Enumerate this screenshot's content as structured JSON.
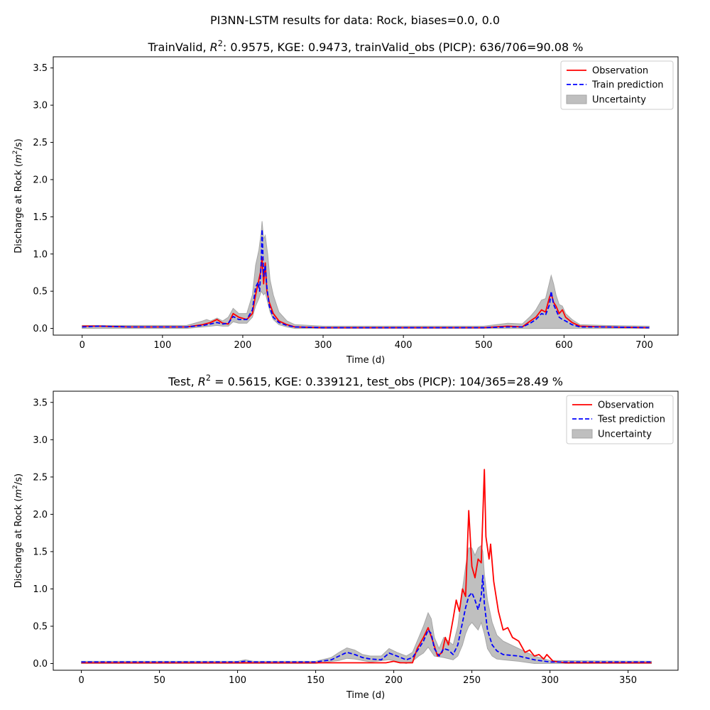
{
  "figure": {
    "suptitle": "PI3NN-LSTM results for data: Rock, biases=0.0, 0.0"
  },
  "colors": {
    "observation": "#ff0000",
    "prediction": "#0000ff",
    "uncertainty": "#bfbfbf",
    "uncertainty_edge": "#a6a6a6"
  },
  "chart_data": [
    {
      "type": "line",
      "title_parts": [
        "TrainValid, ",
        "R",
        "2",
        ": 0.9575,  KGE: 0.9473, trainValid_obs (PICP): 636/706=90.08 %"
      ],
      "xlabel": "Time (d)",
      "ylabel_parts": [
        "Discharge at Rock (",
        "m",
        "2",
        "/s)"
      ],
      "xlim": [
        -36,
        742
      ],
      "ylim": [
        -0.09,
        3.65
      ],
      "xticks": [
        0,
        100,
        200,
        300,
        400,
        500,
        600,
        700
      ],
      "yticks": [
        0.0,
        0.5,
        1.0,
        1.5,
        2.0,
        2.5,
        3.0,
        3.5
      ],
      "xtick_labels": [
        "0",
        "100",
        "200",
        "300",
        "400",
        "500",
        "600",
        "700"
      ],
      "ytick_labels": [
        "0.0",
        "0.5",
        "1.0",
        "1.5",
        "2.0",
        "2.5",
        "3.0",
        "3.5"
      ],
      "legend": {
        "loc": "upper right",
        "entries": [
          "Observation",
          "Train prediction",
          "Uncertainty"
        ]
      },
      "grid": false,
      "observation": [
        [
          0,
          0.03
        ],
        [
          20,
          0.03
        ],
        [
          60,
          0.02
        ],
        [
          100,
          0.02
        ],
        [
          130,
          0.02
        ],
        [
          150,
          0.05
        ],
        [
          160,
          0.08
        ],
        [
          168,
          0.12
        ],
        [
          175,
          0.07
        ],
        [
          182,
          0.06
        ],
        [
          188,
          0.2
        ],
        [
          195,
          0.15
        ],
        [
          205,
          0.12
        ],
        [
          212,
          0.2
        ],
        [
          216,
          0.45
        ],
        [
          219,
          0.6
        ],
        [
          222,
          0.75
        ],
        [
          224,
          0.95
        ],
        [
          226,
          0.6
        ],
        [
          228,
          0.88
        ],
        [
          230,
          0.5
        ],
        [
          233,
          0.35
        ],
        [
          238,
          0.2
        ],
        [
          245,
          0.1
        ],
        [
          255,
          0.05
        ],
        [
          265,
          0.02
        ],
        [
          300,
          0.01
        ],
        [
          400,
          0.01
        ],
        [
          500,
          0.01
        ],
        [
          530,
          0.03
        ],
        [
          548,
          0.02
        ],
        [
          558,
          0.1
        ],
        [
          565,
          0.15
        ],
        [
          572,
          0.25
        ],
        [
          577,
          0.22
        ],
        [
          582,
          0.42
        ],
        [
          584,
          0.47
        ],
        [
          587,
          0.35
        ],
        [
          590,
          0.3
        ],
        [
          594,
          0.2
        ],
        [
          598,
          0.25
        ],
        [
          602,
          0.15
        ],
        [
          610,
          0.08
        ],
        [
          620,
          0.03
        ],
        [
          650,
          0.02
        ],
        [
          706,
          0.01
        ]
      ],
      "prediction": [
        [
          0,
          0.02
        ],
        [
          20,
          0.03
        ],
        [
          60,
          0.02
        ],
        [
          100,
          0.02
        ],
        [
          130,
          0.02
        ],
        [
          150,
          0.04
        ],
        [
          160,
          0.06
        ],
        [
          168,
          0.08
        ],
        [
          175,
          0.06
        ],
        [
          182,
          0.07
        ],
        [
          188,
          0.16
        ],
        [
          195,
          0.12
        ],
        [
          205,
          0.12
        ],
        [
          212,
          0.25
        ],
        [
          216,
          0.55
        ],
        [
          219,
          0.62
        ],
        [
          221,
          0.5
        ],
        [
          223,
          0.9
        ],
        [
          224,
          1.33
        ],
        [
          226,
          0.7
        ],
        [
          228,
          0.85
        ],
        [
          230,
          0.55
        ],
        [
          233,
          0.3
        ],
        [
          238,
          0.15
        ],
        [
          245,
          0.08
        ],
        [
          255,
          0.04
        ],
        [
          265,
          0.02
        ],
        [
          300,
          0.01
        ],
        [
          400,
          0.01
        ],
        [
          500,
          0.01
        ],
        [
          530,
          0.02
        ],
        [
          548,
          0.02
        ],
        [
          558,
          0.07
        ],
        [
          565,
          0.12
        ],
        [
          572,
          0.2
        ],
        [
          577,
          0.18
        ],
        [
          582,
          0.32
        ],
        [
          584,
          0.5
        ],
        [
          587,
          0.32
        ],
        [
          590,
          0.25
        ],
        [
          594,
          0.15
        ],
        [
          598,
          0.12
        ],
        [
          602,
          0.1
        ],
        [
          610,
          0.05
        ],
        [
          620,
          0.02
        ],
        [
          650,
          0.02
        ],
        [
          706,
          0.01
        ]
      ],
      "upper": [
        [
          0,
          0.04
        ],
        [
          60,
          0.04
        ],
        [
          130,
          0.04
        ],
        [
          150,
          0.1
        ],
        [
          155,
          0.12
        ],
        [
          160,
          0.1
        ],
        [
          168,
          0.14
        ],
        [
          175,
          0.1
        ],
        [
          182,
          0.15
        ],
        [
          188,
          0.27
        ],
        [
          195,
          0.2
        ],
        [
          205,
          0.2
        ],
        [
          212,
          0.45
        ],
        [
          216,
          0.85
        ],
        [
          220,
          1.05
        ],
        [
          223,
          1.3
        ],
        [
          224,
          1.44
        ],
        [
          226,
          1.2
        ],
        [
          228,
          1.25
        ],
        [
          231,
          1.0
        ],
        [
          234,
          0.65
        ],
        [
          238,
          0.45
        ],
        [
          245,
          0.22
        ],
        [
          255,
          0.1
        ],
        [
          265,
          0.05
        ],
        [
          300,
          0.03
        ],
        [
          400,
          0.03
        ],
        [
          500,
          0.03
        ],
        [
          530,
          0.07
        ],
        [
          548,
          0.06
        ],
        [
          558,
          0.16
        ],
        [
          565,
          0.25
        ],
        [
          572,
          0.38
        ],
        [
          577,
          0.4
        ],
        [
          582,
          0.62
        ],
        [
          584,
          0.71
        ],
        [
          587,
          0.6
        ],
        [
          590,
          0.45
        ],
        [
          594,
          0.32
        ],
        [
          598,
          0.3
        ],
        [
          602,
          0.2
        ],
        [
          610,
          0.12
        ],
        [
          620,
          0.05
        ],
        [
          650,
          0.04
        ],
        [
          706,
          0.03
        ]
      ],
      "lower": [
        [
          0,
          0.0
        ],
        [
          60,
          0.0
        ],
        [
          130,
          0.0
        ],
        [
          150,
          0.02
        ],
        [
          160,
          0.03
        ],
        [
          168,
          0.04
        ],
        [
          175,
          0.03
        ],
        [
          182,
          0.03
        ],
        [
          188,
          0.09
        ],
        [
          195,
          0.07
        ],
        [
          205,
          0.07
        ],
        [
          212,
          0.15
        ],
        [
          216,
          0.3
        ],
        [
          220,
          0.4
        ],
        [
          223,
          0.5
        ],
        [
          226,
          0.45
        ],
        [
          228,
          0.48
        ],
        [
          231,
          0.35
        ],
        [
          234,
          0.22
        ],
        [
          238,
          0.12
        ],
        [
          245,
          0.05
        ],
        [
          255,
          0.02
        ],
        [
          265,
          0.0
        ],
        [
          706,
          0.0
        ]
      ]
    },
    {
      "type": "line",
      "title_parts": [
        "Test, ",
        "R",
        "2",
        " = 0.5615, KGE: 0.339121, test_obs (PICP): 104/365=28.49 %"
      ],
      "xlabel": "Time (d)",
      "ylabel_parts": [
        "Discharge at Rock (",
        "m",
        "2",
        "/s)"
      ],
      "xlim": [
        -18,
        382
      ],
      "ylim": [
        -0.09,
        3.65
      ],
      "xticks": [
        0,
        50,
        100,
        150,
        200,
        250,
        300,
        350
      ],
      "yticks": [
        0.0,
        0.5,
        1.0,
        1.5,
        2.0,
        2.5,
        3.0,
        3.5
      ],
      "xtick_labels": [
        "0",
        "50",
        "100",
        "150",
        "200",
        "250",
        "300",
        "350"
      ],
      "ytick_labels": [
        "0.0",
        "0.5",
        "1.0",
        "1.5",
        "2.0",
        "2.5",
        "3.0",
        "3.5"
      ],
      "legend": {
        "loc": "upper right",
        "entries": [
          "Observation",
          "Test prediction",
          "Uncertainty"
        ]
      },
      "grid": false,
      "observation": [
        [
          0,
          0.01
        ],
        [
          100,
          0.01
        ],
        [
          150,
          0.01
        ],
        [
          195,
          0.01
        ],
        [
          200,
          0.03
        ],
        [
          204,
          0.01
        ],
        [
          212,
          0.01
        ],
        [
          215,
          0.2
        ],
        [
          219,
          0.35
        ],
        [
          222,
          0.48
        ],
        [
          225,
          0.3
        ],
        [
          228,
          0.1
        ],
        [
          231,
          0.15
        ],
        [
          233,
          0.35
        ],
        [
          235,
          0.25
        ],
        [
          238,
          0.6
        ],
        [
          240,
          0.85
        ],
        [
          242,
          0.7
        ],
        [
          244,
          1.0
        ],
        [
          246,
          0.9
        ],
        [
          248,
          2.05
        ],
        [
          250,
          1.3
        ],
        [
          252,
          1.15
        ],
        [
          254,
          1.4
        ],
        [
          256,
          1.35
        ],
        [
          258,
          2.6
        ],
        [
          259,
          1.7
        ],
        [
          261,
          1.4
        ],
        [
          262,
          1.6
        ],
        [
          264,
          1.1
        ],
        [
          267,
          0.7
        ],
        [
          270,
          0.45
        ],
        [
          273,
          0.48
        ],
        [
          276,
          0.35
        ],
        [
          280,
          0.3
        ],
        [
          284,
          0.15
        ],
        [
          287,
          0.18
        ],
        [
          290,
          0.1
        ],
        [
          293,
          0.12
        ],
        [
          296,
          0.06
        ],
        [
          298,
          0.12
        ],
        [
          302,
          0.03
        ],
        [
          310,
          0.01
        ],
        [
          365,
          0.01
        ]
      ],
      "prediction": [
        [
          0,
          0.02
        ],
        [
          50,
          0.02
        ],
        [
          100,
          0.02
        ],
        [
          105,
          0.03
        ],
        [
          110,
          0.02
        ],
        [
          150,
          0.02
        ],
        [
          160,
          0.05
        ],
        [
          165,
          0.1
        ],
        [
          170,
          0.15
        ],
        [
          175,
          0.12
        ],
        [
          180,
          0.08
        ],
        [
          185,
          0.06
        ],
        [
          192,
          0.05
        ],
        [
          197,
          0.14
        ],
        [
          202,
          0.1
        ],
        [
          208,
          0.05
        ],
        [
          212,
          0.08
        ],
        [
          216,
          0.2
        ],
        [
          219,
          0.3
        ],
        [
          222,
          0.45
        ],
        [
          224,
          0.4
        ],
        [
          226,
          0.2
        ],
        [
          229,
          0.1
        ],
        [
          232,
          0.2
        ],
        [
          235,
          0.18
        ],
        [
          238,
          0.12
        ],
        [
          241,
          0.25
        ],
        [
          244,
          0.55
        ],
        [
          246,
          0.75
        ],
        [
          248,
          0.9
        ],
        [
          250,
          0.95
        ],
        [
          252,
          0.85
        ],
        [
          254,
          0.72
        ],
        [
          256,
          0.9
        ],
        [
          257,
          1.18
        ],
        [
          258,
          0.8
        ],
        [
          260,
          0.45
        ],
        [
          263,
          0.25
        ],
        [
          266,
          0.17
        ],
        [
          270,
          0.12
        ],
        [
          280,
          0.1
        ],
        [
          290,
          0.05
        ],
        [
          300,
          0.02
        ],
        [
          365,
          0.02
        ]
      ],
      "upper": [
        [
          0,
          0.03
        ],
        [
          100,
          0.03
        ],
        [
          105,
          0.05
        ],
        [
          110,
          0.03
        ],
        [
          150,
          0.03
        ],
        [
          160,
          0.08
        ],
        [
          165,
          0.15
        ],
        [
          170,
          0.21
        ],
        [
          175,
          0.18
        ],
        [
          180,
          0.12
        ],
        [
          185,
          0.1
        ],
        [
          192,
          0.1
        ],
        [
          197,
          0.2
        ],
        [
          202,
          0.15
        ],
        [
          208,
          0.1
        ],
        [
          212,
          0.15
        ],
        [
          216,
          0.35
        ],
        [
          219,
          0.5
        ],
        [
          222,
          0.68
        ],
        [
          224,
          0.6
        ],
        [
          226,
          0.35
        ],
        [
          229,
          0.2
        ],
        [
          232,
          0.35
        ],
        [
          235,
          0.3
        ],
        [
          238,
          0.25
        ],
        [
          241,
          0.5
        ],
        [
          244,
          1.0
        ],
        [
          246,
          1.3
        ],
        [
          248,
          1.55
        ],
        [
          250,
          1.55
        ],
        [
          252,
          1.45
        ],
        [
          254,
          1.55
        ],
        [
          256,
          1.58
        ],
        [
          257,
          1.5
        ],
        [
          258,
          1.2
        ],
        [
          260,
          0.85
        ],
        [
          263,
          0.55
        ],
        [
          266,
          0.38
        ],
        [
          270,
          0.3
        ],
        [
          280,
          0.2
        ],
        [
          290,
          0.1
        ],
        [
          300,
          0.04
        ],
        [
          365,
          0.03
        ]
      ],
      "lower": [
        [
          0,
          0.0
        ],
        [
          150,
          0.0
        ],
        [
          165,
          0.04
        ],
        [
          170,
          0.07
        ],
        [
          175,
          0.06
        ],
        [
          185,
          0.02
        ],
        [
          197,
          0.05
        ],
        [
          208,
          0.0
        ],
        [
          212,
          0.03
        ],
        [
          216,
          0.1
        ],
        [
          219,
          0.14
        ],
        [
          222,
          0.22
        ],
        [
          226,
          0.1
        ],
        [
          232,
          0.08
        ],
        [
          238,
          0.05
        ],
        [
          241,
          0.1
        ],
        [
          244,
          0.25
        ],
        [
          246,
          0.4
        ],
        [
          248,
          0.5
        ],
        [
          250,
          0.55
        ],
        [
          252,
          0.5
        ],
        [
          254,
          0.45
        ],
        [
          256,
          0.55
        ],
        [
          258,
          0.4
        ],
        [
          260,
          0.2
        ],
        [
          263,
          0.1
        ],
        [
          266,
          0.06
        ],
        [
          270,
          0.05
        ],
        [
          280,
          0.03
        ],
        [
          290,
          0.0
        ],
        [
          365,
          0.0
        ]
      ]
    }
  ]
}
